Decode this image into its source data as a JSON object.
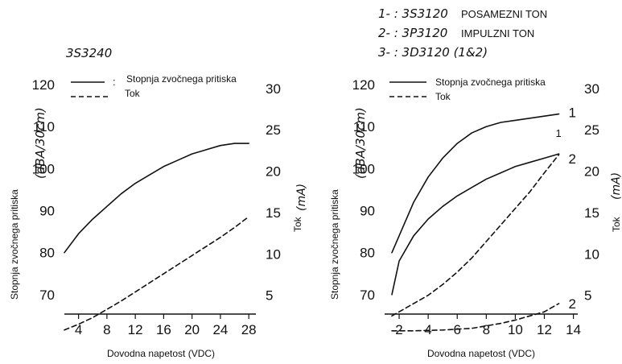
{
  "chart_data": [
    {
      "type": "line",
      "title": "3S3240",
      "xlabel": "Dovodna napetost (VDC)",
      "ylabel": "Stopnja zvočnega pritiska",
      "ylabel_unit": "(dBA/30cm)",
      "y2label": "Tok",
      "y2label_unit": "(mA)",
      "xlim": [
        2,
        29
      ],
      "xticks": [
        "4",
        "8",
        "12",
        "16",
        "20",
        "24",
        "28"
      ],
      "ylim": [
        60,
        125
      ],
      "yticks": [
        "70",
        "80",
        "90",
        "100",
        "110",
        "120"
      ],
      "y2lim": [
        0,
        33
      ],
      "y2ticks": [
        "5",
        "10",
        "15",
        "20",
        "25",
        "30"
      ],
      "legend": [
        {
          "label": "Stopnja zvočnega pritiska",
          "style": "solid"
        },
        {
          "label": "Tok",
          "style": "dashed"
        }
      ],
      "legend_marker": ":",
      "series": [
        {
          "axis": "left",
          "style": "solid",
          "x": [
            2,
            4,
            6,
            8,
            10,
            12,
            14,
            16,
            18,
            20,
            22,
            24,
            26,
            28
          ],
          "y": [
            80,
            84.5,
            88,
            91,
            94,
            96.5,
            98.5,
            100.5,
            102,
            103.5,
            104.5,
            105.5,
            106,
            106
          ]
        },
        {
          "axis": "right",
          "style": "dashed",
          "x": [
            2,
            4,
            6,
            8,
            10,
            12,
            14,
            16,
            18,
            20,
            22,
            24,
            26,
            28
          ],
          "y": [
            0.8,
            1.5,
            2.3,
            3.3,
            4.3,
            5.4,
            6.5,
            7.6,
            8.7,
            9.8,
            10.9,
            12,
            13.2,
            14.5
          ]
        }
      ]
    },
    {
      "type": "line",
      "title_lines": [
        {
          "code": "1- : 3S3120",
          "text": "POSAMEZNI TON"
        },
        {
          "code": "2- : 3P3120",
          "text": "IMPULZNI TON"
        },
        {
          "code": "3- : 3D3120 (1&2)",
          "text": ""
        }
      ],
      "xlabel": "Dovodna napetost (VDC)",
      "ylabel": "Stopnja zvočnega pritiska",
      "ylabel_unit": "(dBA/30cm)",
      "y2label": "Tok",
      "y2label_unit": "(mA)",
      "xlim": [
        1,
        14.3
      ],
      "xticks": [
        "2",
        "4",
        "6",
        "8",
        "10",
        "12",
        "14"
      ],
      "ylim": [
        60,
        125
      ],
      "yticks": [
        "70",
        "80",
        "90",
        "100",
        "110",
        "120"
      ],
      "y2lim": [
        0,
        33
      ],
      "y2ticks": [
        "5",
        "10",
        "15",
        "20",
        "25",
        "30"
      ],
      "legend": [
        {
          "label": "Stopnja zvočnega pritiska",
          "style": "solid"
        },
        {
          "label": "Tok",
          "style": "dashed"
        }
      ],
      "series": [
        {
          "axis": "left",
          "style": "solid",
          "end_label": "1",
          "x": [
            1.5,
            2,
            3,
            4,
            5,
            6,
            7,
            8,
            9,
            10,
            11,
            12,
            13
          ],
          "y": [
            80,
            84,
            92,
            98,
            102.5,
            106,
            108.5,
            110,
            111,
            111.5,
            112,
            112.5,
            113
          ]
        },
        {
          "axis": "left",
          "style": "solid",
          "end_label": "2",
          "x": [
            1.5,
            2,
            3,
            4,
            5,
            6,
            7,
            8,
            9,
            10,
            11,
            12,
            13
          ],
          "y": [
            70,
            78,
            84,
            88,
            91,
            93.5,
            95.5,
            97.5,
            99,
            100.5,
            101.5,
            102.5,
            103.5
          ]
        },
        {
          "axis": "right",
          "style": "dashed",
          "end_label": "1",
          "x": [
            1.5,
            2,
            3,
            4,
            5,
            6,
            7,
            8,
            9,
            10,
            11,
            12,
            13
          ],
          "y": [
            2.5,
            3,
            4,
            5,
            6.3,
            7.8,
            9.5,
            11.5,
            13.5,
            15.5,
            17.5,
            19.8,
            22
          ]
        },
        {
          "axis": "right",
          "style": "dashed",
          "end_label": "2",
          "x": [
            1.5,
            3,
            5,
            7,
            8,
            9,
            10,
            11,
            12,
            13
          ],
          "y": [
            0.7,
            0.7,
            0.8,
            1,
            1.3,
            1.6,
            2,
            2.5,
            3,
            4
          ]
        }
      ]
    }
  ]
}
